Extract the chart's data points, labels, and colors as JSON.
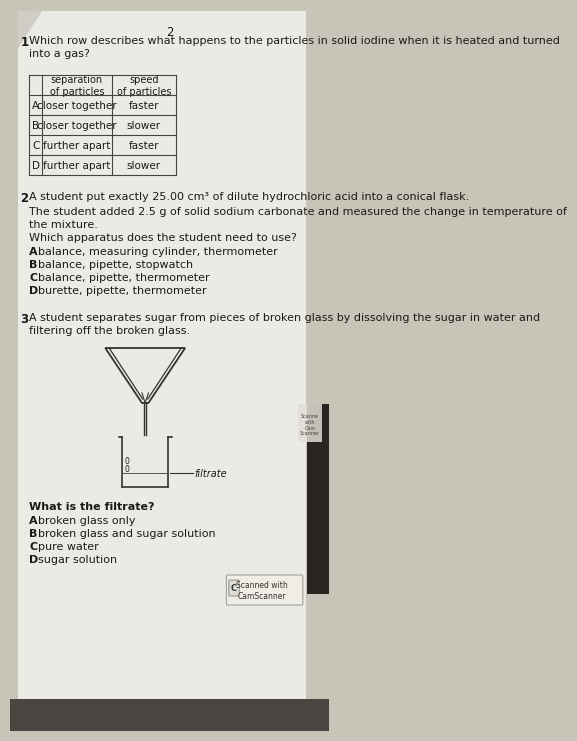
{
  "page_number": "2",
  "bg_color": "#c8c4b8",
  "paper_color": "#e8e6e0",
  "q1": {
    "number": "1",
    "text": "Which row describes what happens to the particles in solid iodine when it is heated and turned\ninto a gas?",
    "table_headers": [
      "",
      "separation\nof particles",
      "speed\nof particles"
    ],
    "table_rows": [
      [
        "A",
        "closer together",
        "faster"
      ],
      [
        "B",
        "closer together",
        "slower"
      ],
      [
        "C",
        "further apart",
        "faster"
      ],
      [
        "D",
        "further apart",
        "slower"
      ]
    ]
  },
  "q2": {
    "number": "2",
    "text1": "A student put exactly 25.00 cm³ of dilute hydrochloric acid into a conical flask.",
    "text2": "The student added 2.5 g of solid sodium carbonate and measured the change in temperature of\nthe mixture.",
    "text3": "Which apparatus does the student need to use?",
    "options": [
      [
        "A",
        "balance, measuring cylinder, thermometer"
      ],
      [
        "B",
        "balance, pipette, stopwatch"
      ],
      [
        "C",
        "balance, pipette, thermometer"
      ],
      [
        "D",
        "burette, pipette, thermometer"
      ]
    ]
  },
  "q3": {
    "number": "3",
    "text1": "A student separates sugar from pieces of broken glass by dissolving the sugar in water and\nfiltering off the broken glass.",
    "text2": "What is the filtrate?",
    "options": [
      [
        "A",
        "broken glass only"
      ],
      [
        "B",
        "broken glass and sugar solution"
      ],
      [
        "C",
        "pure water"
      ],
      [
        "D",
        "sugar solution"
      ]
    ],
    "filtrate_label": "filtrate"
  },
  "camscanner_text": "Scanned with\nCamScanner",
  "right_stamp_text": "Scanne\nwith\nCam\nScanner",
  "font_size_body": 8.5,
  "text_color": "#1a1a1a"
}
